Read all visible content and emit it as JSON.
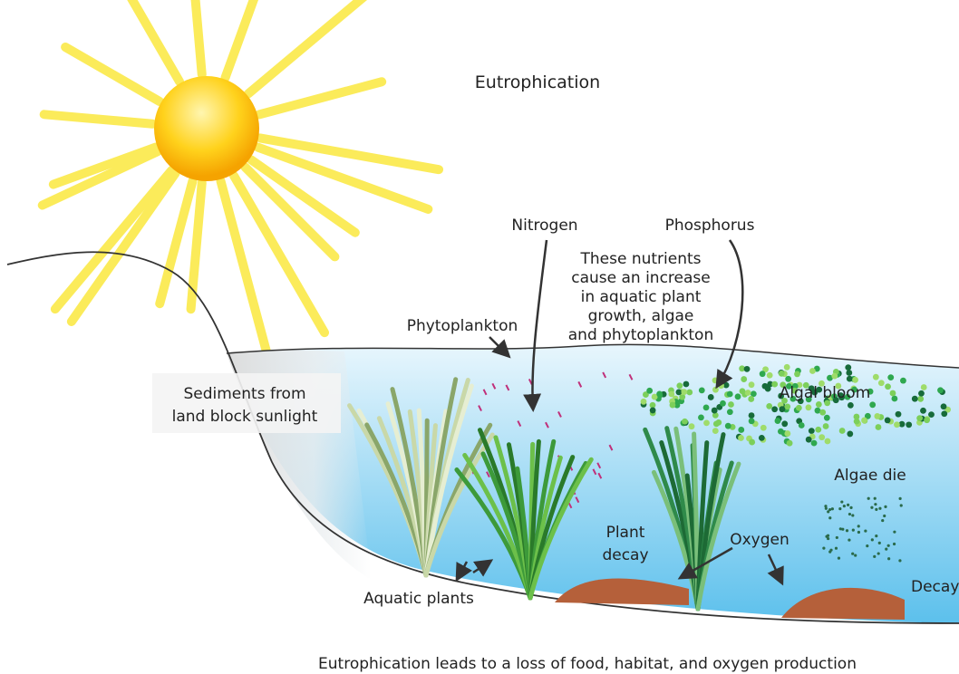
{
  "title": "Eutrophication",
  "labels": {
    "nitrogen": "Nitrogen",
    "phosphorus": "Phosphorus",
    "nutrients_note": [
      "These nutrients",
      "cause an increase",
      "in aquatic plant",
      "growth, algae",
      "and phytoplankton"
    ],
    "phytoplankton": "Phytoplankton",
    "sediments": [
      "Sediments from",
      "land block sunlight"
    ],
    "algal_bloom": "Algal bloom",
    "algae_die": "Algae die",
    "plant_decay": [
      "Plant",
      "decay"
    ],
    "oxygen": "Oxygen",
    "decay": "Decay",
    "aquatic_plants": "Aquatic plants"
  },
  "caption": "Eutrophication leads to a loss of food, habitat, and oxygen production"
}
